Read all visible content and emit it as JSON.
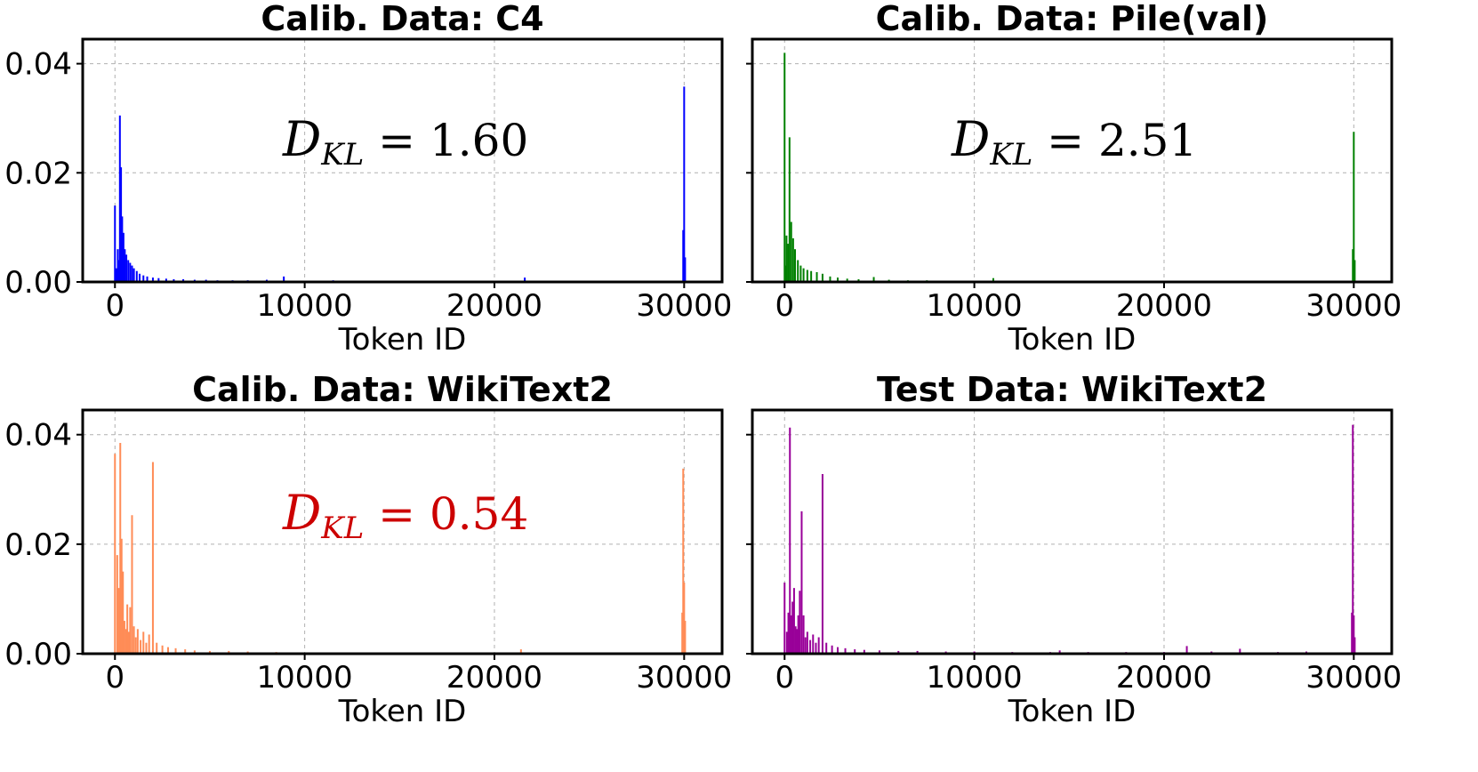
{
  "chart_data": [
    {
      "type": "bar",
      "title": "Calib. Data: C4",
      "xlabel": "Token ID",
      "ylabel": "",
      "xlim": [
        -1700,
        32000
      ],
      "ylim": [
        0,
        0.0445
      ],
      "xticks": [
        "0",
        "10000",
        "20000",
        "30000"
      ],
      "yticks": [
        "0.00",
        "0.02",
        "0.04"
      ],
      "color": "#0000ff",
      "annotation": {
        "symbol": "D",
        "sub": "KL",
        "eq": " = 1.60",
        "color": "#000000"
      },
      "x": [
        0,
        80,
        150,
        220,
        260,
        320,
        380,
        450,
        520,
        600,
        700,
        800,
        900,
        1000,
        1150,
        1300,
        1500,
        1700,
        2000,
        2300,
        2700,
        3100,
        3600,
        4200,
        4800,
        5400,
        6200,
        7000,
        8000,
        8900,
        10000,
        11500,
        13000,
        16000,
        21600,
        29950,
        30000,
        30050
      ],
      "values": [
        0.014,
        0.0025,
        0.006,
        0.004,
        0.0305,
        0.021,
        0.012,
        0.009,
        0.006,
        0.005,
        0.004,
        0.0035,
        0.003,
        0.0025,
        0.002,
        0.0015,
        0.0012,
        0.001,
        0.0008,
        0.0007,
        0.0006,
        0.0005,
        0.0005,
        0.0004,
        0.0004,
        0.0003,
        0.0003,
        0.0003,
        0.0004,
        0.001,
        0.0002,
        0.0003,
        0.0002,
        0.0002,
        0.0008,
        0.0095,
        0.0358,
        0.0045
      ]
    },
    {
      "type": "bar",
      "title": "Calib. Data: Pile(val)",
      "xlabel": "Token ID",
      "ylabel": "",
      "xlim": [
        -1700,
        32000
      ],
      "ylim": [
        0,
        0.0445
      ],
      "xticks": [
        "0",
        "10000",
        "20000",
        "30000"
      ],
      "yticks": [
        "0.00",
        "0.02",
        "0.04"
      ],
      "color": "#008000",
      "annotation": {
        "symbol": "D",
        "sub": "KL",
        "eq": " = 2.51",
        "color": "#000000"
      },
      "x": [
        0,
        40,
        100,
        180,
        260,
        350,
        450,
        550,
        700,
        850,
        1000,
        1200,
        1400,
        1700,
        2000,
        2400,
        2800,
        3300,
        3900,
        4700,
        5500,
        6500,
        7500,
        9000,
        11000,
        13000,
        15000,
        29950,
        30000,
        30050
      ],
      "values": [
        0.042,
        0.003,
        0.0085,
        0.007,
        0.0265,
        0.011,
        0.008,
        0.006,
        0.004,
        0.003,
        0.0025,
        0.0022,
        0.002,
        0.0018,
        0.0015,
        0.001,
        0.0008,
        0.0006,
        0.0005,
        0.0009,
        0.0004,
        0.0003,
        0.0003,
        0.0002,
        0.0007,
        0.0002,
        0.0002,
        0.006,
        0.0275,
        0.004
      ]
    },
    {
      "type": "bar",
      "title": "Calib. Data: WikiText2",
      "xlabel": "Token ID",
      "ylabel": "",
      "xlim": [
        -1700,
        32000
      ],
      "ylim": [
        0,
        0.0445
      ],
      "xticks": [
        "0",
        "10000",
        "20000",
        "30000"
      ],
      "yticks": [
        "0.00",
        "0.02",
        "0.04"
      ],
      "color": "#ff8c57",
      "annotation": {
        "symbol": "D",
        "sub": "KL",
        "eq": " = 0.54",
        "color": "#cc0000"
      },
      "x": [
        0,
        120,
        200,
        280,
        350,
        420,
        500,
        580,
        650,
        720,
        800,
        900,
        1000,
        1100,
        1200,
        1350,
        1500,
        1650,
        1800,
        2000,
        2200,
        2500,
        2800,
        3200,
        3700,
        4200,
        5000,
        6000,
        7000,
        8500,
        21400,
        29900,
        29950,
        30000,
        30050
      ],
      "values": [
        0.0365,
        0.018,
        0.012,
        0.0385,
        0.021,
        0.015,
        0.006,
        0.0045,
        0.009,
        0.004,
        0.0085,
        0.0253,
        0.005,
        0.003,
        0.0045,
        0.0025,
        0.004,
        0.002,
        0.0035,
        0.035,
        0.002,
        0.0015,
        0.0012,
        0.001,
        0.0008,
        0.0006,
        0.0005,
        0.0005,
        0.0004,
        0.0003,
        0.0008,
        0.0075,
        0.0338,
        0.013,
        0.006
      ]
    },
    {
      "type": "bar",
      "title": "Test Data: WikiText2",
      "xlabel": "Token ID",
      "ylabel": "",
      "xlim": [
        -1700,
        32000
      ],
      "ylim": [
        0,
        0.0445
      ],
      "xticks": [
        "0",
        "10000",
        "20000",
        "30000"
      ],
      "yticks": [
        "0.00",
        "0.02",
        "0.04"
      ],
      "color": "#990099",
      "annotation": null,
      "x": [
        0,
        120,
        200,
        280,
        350,
        420,
        500,
        580,
        650,
        720,
        800,
        900,
        1000,
        1100,
        1200,
        1350,
        1500,
        1650,
        1800,
        2000,
        2200,
        2500,
        2800,
        3200,
        3700,
        4200,
        5000,
        6000,
        7000,
        8500,
        10000,
        12000,
        14000,
        14500,
        16000,
        18000,
        20000,
        21200,
        22500,
        24000,
        26000,
        27500,
        29900,
        29950,
        30000,
        30050
      ],
      "values": [
        0.013,
        0.004,
        0.0075,
        0.0413,
        0.007,
        0.0095,
        0.012,
        0.005,
        0.0045,
        0.007,
        0.0115,
        0.026,
        0.007,
        0.003,
        0.004,
        0.0025,
        0.0035,
        0.002,
        0.003,
        0.0328,
        0.002,
        0.0015,
        0.0012,
        0.001,
        0.0008,
        0.0007,
        0.0006,
        0.0005,
        0.0005,
        0.0004,
        0.0004,
        0.0003,
        0.0003,
        0.0006,
        0.0003,
        0.0003,
        0.0003,
        0.0014,
        0.0004,
        0.0009,
        0.0003,
        0.0004,
        0.0075,
        0.0418,
        0.007,
        0.003
      ]
    }
  ]
}
